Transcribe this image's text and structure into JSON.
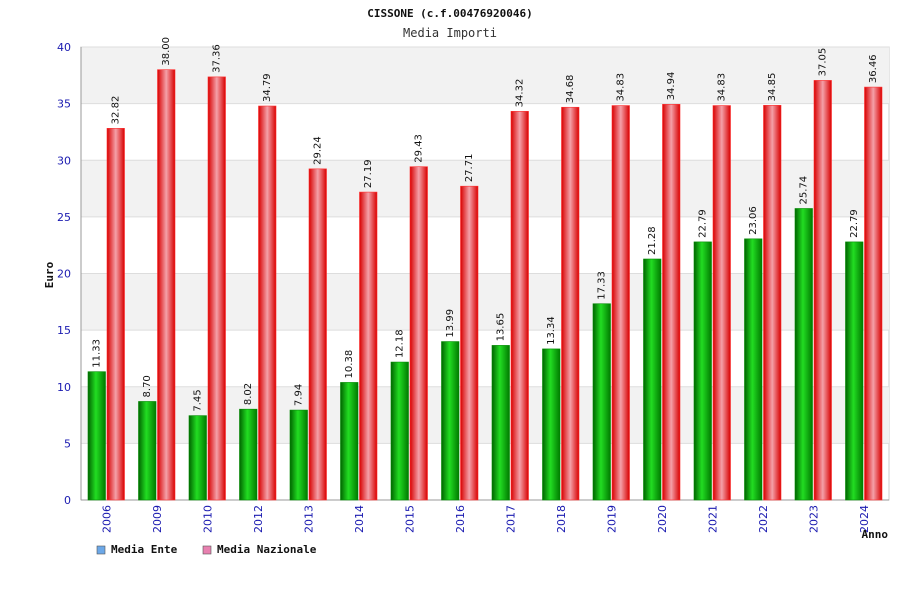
{
  "chart_data": {
    "type": "bar",
    "title": "CISSONE (c.f.00476920046)",
    "subtitle": "Media Importi",
    "ylabel": "Euro",
    "xlabel": "Anno",
    "ylim": [
      0,
      40
    ],
    "yticks": [
      "0",
      "5",
      "10",
      "15",
      "20",
      "25",
      "30",
      "35",
      "40"
    ],
    "grid": true,
    "legend_position": "bottom-left",
    "categories": [
      "2006",
      "2009",
      "2010",
      "2012",
      "2013",
      "2014",
      "2015",
      "2016",
      "2017",
      "2018",
      "2019",
      "2020",
      "2021",
      "2022",
      "2023",
      "2024"
    ],
    "series": [
      {
        "name": "Media Ente",
        "color": "#00b000",
        "legend_color": "#6ca8e8",
        "values": [
          11.33,
          8.7,
          7.45,
          8.02,
          7.94,
          10.38,
          12.18,
          13.99,
          13.65,
          13.34,
          17.33,
          21.28,
          22.79,
          23.06,
          25.74,
          22.79
        ],
        "labels": [
          "11.33",
          "8.70",
          "7.45",
          "8.02",
          "7.94",
          "10.38",
          "12.18",
          "13.99",
          "13.65",
          "13.34",
          "17.33",
          "21.28",
          "22.79",
          "23.06",
          "25.74",
          "22.79"
        ]
      },
      {
        "name": "Media Nazionale",
        "color": "#e80000",
        "legend_color": "#e880b0",
        "values": [
          32.82,
          38.0,
          37.36,
          34.79,
          29.24,
          27.19,
          29.43,
          27.71,
          34.32,
          34.68,
          34.83,
          34.94,
          34.83,
          34.85,
          37.05,
          36.46
        ],
        "labels": [
          "32.82",
          "38.00",
          "37.36",
          "34.79",
          "29.24",
          "27.19",
          "29.43",
          "27.71",
          "34.32",
          "34.68",
          "34.83",
          "34.94",
          "34.83",
          "34.85",
          "37.05",
          "36.46"
        ]
      }
    ]
  }
}
